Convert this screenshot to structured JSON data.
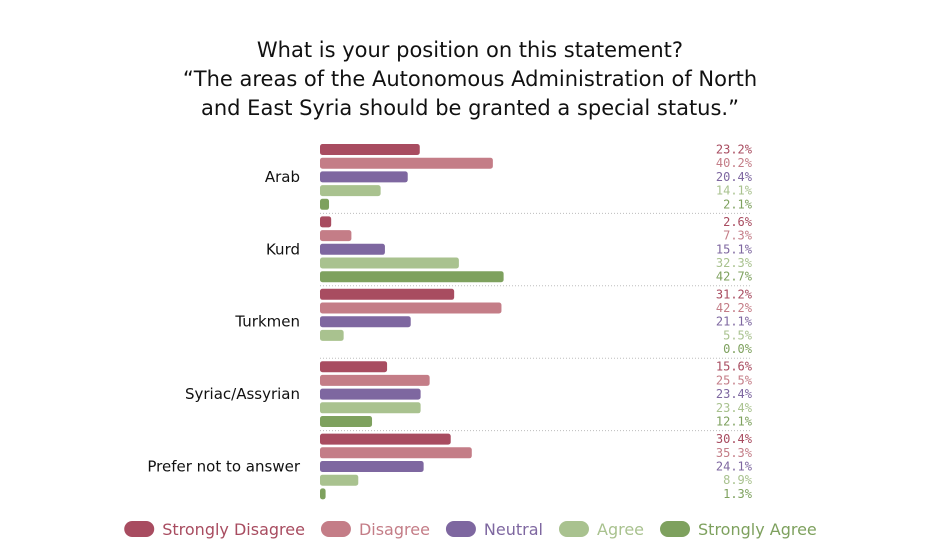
{
  "chart_data": {
    "type": "bar",
    "orientation": "horizontal",
    "title": [
      "What is your position on this statement?",
      "“The areas of the Autonomous Administration of North",
      "and East Syria should be granted a special status.”"
    ],
    "xlabel": "",
    "ylabel": "",
    "xlim": [
      0,
      100
    ],
    "grid": false,
    "legend_position": "bottom",
    "categories": [
      "Arab",
      "Kurd",
      "Turkmen",
      "Syriac/Assyrian",
      "Prefer not to answer"
    ],
    "series": [
      {
        "name": "Strongly Disagree",
        "color": "#a84c60",
        "values": [
          23.2,
          2.6,
          31.2,
          15.6,
          30.4
        ],
        "labels": [
          "23.2%",
          "2.6%",
          "31.2%",
          "15.6%",
          "30.4%"
        ]
      },
      {
        "name": "Disagree",
        "color": "#c47d87",
        "values": [
          40.2,
          7.3,
          42.2,
          25.5,
          35.3
        ],
        "labels": [
          "40.2%",
          "7.3%",
          "42.2%",
          "25.5%",
          "35.3%"
        ]
      },
      {
        "name": "Neutral",
        "color": "#7e67a0",
        "values": [
          20.4,
          15.1,
          21.1,
          23.4,
          24.1
        ],
        "labels": [
          "20.4%",
          "15.1%",
          "21.1%",
          "23.4%",
          "24.1%"
        ]
      },
      {
        "name": "Agree",
        "color": "#a9c28f",
        "values": [
          14.1,
          32.3,
          5.5,
          23.4,
          8.9
        ],
        "labels": [
          "14.1%",
          "32.3%",
          "5.5%",
          "23.4%",
          "8.9%"
        ]
      },
      {
        "name": "Strongly Agree",
        "color": "#7ea15e",
        "values": [
          2.1,
          42.7,
          0.0,
          12.1,
          1.3
        ],
        "labels": [
          "2.1%",
          "42.7%",
          "0.0%",
          "12.1%",
          "1.3%"
        ]
      }
    ]
  }
}
